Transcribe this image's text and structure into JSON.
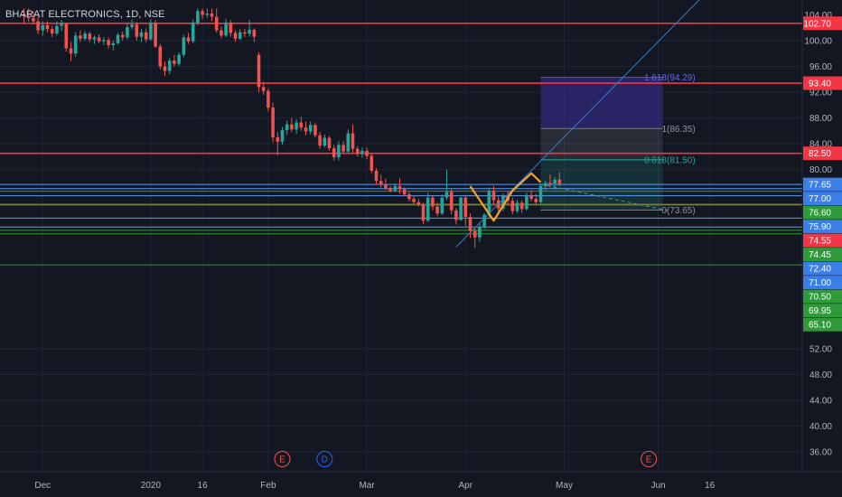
{
  "header": {
    "title": "BHARAT ELECTRONICS, 1D, NSE"
  },
  "colors": {
    "background": "#131722",
    "grid": "#1f2433",
    "up": "#26a69a",
    "down": "#ef5350",
    "axis_text": "#b2b5be",
    "pattern": "#f7a325",
    "trend": "#2f7fd6"
  },
  "chart_data": {
    "type": "candlestick",
    "title": "BHARAT ELECTRONICS, 1D, NSE",
    "ylim": [
      33.5,
      104.5
    ],
    "y_ticks": [
      100,
      96,
      92,
      88,
      84,
      80,
      52,
      48,
      44,
      40,
      36
    ],
    "top_partial_tick": "104.00",
    "x_tick_labels": [
      {
        "label": "Dec",
        "bar": 4
      },
      {
        "label": "2020",
        "bar": 27
      },
      {
        "label": "16",
        "bar": 38
      },
      {
        "label": "Feb",
        "bar": 52
      },
      {
        "label": "Mar",
        "bar": 73
      },
      {
        "label": "Apr",
        "bar": 94
      },
      {
        "label": "May",
        "bar": 115
      },
      {
        "label": "Jun",
        "bar": 135
      },
      {
        "label": "16",
        "bar": 146
      }
    ],
    "candles": [
      {
        "o": 104,
        "h": 105,
        "l": 102.8,
        "c": 103.8
      },
      {
        "o": 103.8,
        "h": 105,
        "l": 103,
        "c": 103.5
      },
      {
        "o": 103.5,
        "h": 104.6,
        "l": 102.5,
        "c": 103
      },
      {
        "o": 103,
        "h": 103.8,
        "l": 101,
        "c": 101.6
      },
      {
        "o": 101.6,
        "h": 103,
        "l": 100.8,
        "c": 102.4
      },
      {
        "o": 102.4,
        "h": 103,
        "l": 101.3,
        "c": 101.8
      },
      {
        "o": 101.8,
        "h": 102.3,
        "l": 100.5,
        "c": 101.1
      },
      {
        "o": 101.1,
        "h": 103,
        "l": 100.8,
        "c": 102.3
      },
      {
        "o": 102.3,
        "h": 103.2,
        "l": 101.5,
        "c": 102.6
      },
      {
        "o": 102.6,
        "h": 102.8,
        "l": 98.3,
        "c": 98.8
      },
      {
        "o": 98.8,
        "h": 99.8,
        "l": 96.8,
        "c": 98
      },
      {
        "o": 98,
        "h": 101.3,
        "l": 97.5,
        "c": 100.8
      },
      {
        "o": 100.8,
        "h": 101.6,
        "l": 99.8,
        "c": 100.3
      },
      {
        "o": 100.3,
        "h": 101.5,
        "l": 100,
        "c": 101.1
      },
      {
        "o": 101.1,
        "h": 101.4,
        "l": 99.8,
        "c": 100.2
      },
      {
        "o": 100.2,
        "h": 100.8,
        "l": 99.5,
        "c": 100.5
      },
      {
        "o": 100.5,
        "h": 101,
        "l": 99.6,
        "c": 99.9
      },
      {
        "o": 99.9,
        "h": 100.6,
        "l": 99.3,
        "c": 100.1
      },
      {
        "o": 100.1,
        "h": 100.5,
        "l": 98.8,
        "c": 99.3
      },
      {
        "o": 99.3,
        "h": 100,
        "l": 98.5,
        "c": 99.6
      },
      {
        "o": 99.6,
        "h": 101.2,
        "l": 99.4,
        "c": 100.9
      },
      {
        "o": 100.9,
        "h": 101.4,
        "l": 100,
        "c": 100.5
      },
      {
        "o": 100.5,
        "h": 102.6,
        "l": 100.2,
        "c": 102.1
      },
      {
        "o": 102.1,
        "h": 103.3,
        "l": 101.7,
        "c": 102.5
      },
      {
        "o": 102.5,
        "h": 102.9,
        "l": 100,
        "c": 100.6
      },
      {
        "o": 100.6,
        "h": 101.8,
        "l": 99.8,
        "c": 101.3
      },
      {
        "o": 101.3,
        "h": 101.9,
        "l": 99.8,
        "c": 100.2
      },
      {
        "o": 100.2,
        "h": 103.3,
        "l": 100,
        "c": 102.8
      },
      {
        "o": 102.8,
        "h": 103.2,
        "l": 98.9,
        "c": 99.1
      },
      {
        "o": 99.1,
        "h": 99.5,
        "l": 95.5,
        "c": 96
      },
      {
        "o": 96,
        "h": 96.8,
        "l": 94.5,
        "c": 95.3
      },
      {
        "o": 95.3,
        "h": 97.3,
        "l": 94.8,
        "c": 96.9
      },
      {
        "o": 96.9,
        "h": 97.8,
        "l": 96,
        "c": 96.4
      },
      {
        "o": 96.4,
        "h": 98.2,
        "l": 96.1,
        "c": 97.8
      },
      {
        "o": 97.8,
        "h": 100.9,
        "l": 97.4,
        "c": 100.5
      },
      {
        "o": 100.5,
        "h": 101.2,
        "l": 99.5,
        "c": 99.9
      },
      {
        "o": 99.9,
        "h": 103.3,
        "l": 99.6,
        "c": 102.8
      },
      {
        "o": 102.8,
        "h": 105,
        "l": 102.4,
        "c": 104.6
      },
      {
        "o": 104.6,
        "h": 105,
        "l": 103.4,
        "c": 104
      },
      {
        "o": 104,
        "h": 105,
        "l": 103.6,
        "c": 104.2
      },
      {
        "o": 104.2,
        "h": 105,
        "l": 103,
        "c": 103.7
      },
      {
        "o": 103.7,
        "h": 105,
        "l": 101.2,
        "c": 101.6
      },
      {
        "o": 101.6,
        "h": 102.2,
        "l": 100.4,
        "c": 100.8
      },
      {
        "o": 100.8,
        "h": 103.4,
        "l": 100.5,
        "c": 102.8
      },
      {
        "o": 102.8,
        "h": 103.2,
        "l": 100.6,
        "c": 101.2
      },
      {
        "o": 101.2,
        "h": 101.6,
        "l": 99.8,
        "c": 100.3
      },
      {
        "o": 100.3,
        "h": 101.8,
        "l": 100.1,
        "c": 101.3
      },
      {
        "o": 101.3,
        "h": 101.8,
        "l": 100.6,
        "c": 101.1
      },
      {
        "o": 101.1,
        "h": 103.2,
        "l": 100.6,
        "c": 101.7
      },
      {
        "o": 101.7,
        "h": 101.9,
        "l": 99.8,
        "c": 100.6
      },
      {
        "o": 97.8,
        "h": 98.2,
        "l": 92,
        "c": 92.8
      },
      {
        "o": 92.8,
        "h": 93.6,
        "l": 91.6,
        "c": 92.2
      },
      {
        "o": 92.2,
        "h": 92.6,
        "l": 89,
        "c": 89.6
      },
      {
        "o": 89.6,
        "h": 90.4,
        "l": 84.2,
        "c": 85
      },
      {
        "o": 85,
        "h": 85.8,
        "l": 82.2,
        "c": 84.3
      },
      {
        "o": 84.3,
        "h": 86.6,
        "l": 83.8,
        "c": 86.1
      },
      {
        "o": 86.1,
        "h": 87.6,
        "l": 85.4,
        "c": 87
      },
      {
        "o": 87,
        "h": 88,
        "l": 85.8,
        "c": 86.2
      },
      {
        "o": 86.2,
        "h": 87.8,
        "l": 85.5,
        "c": 87.3
      },
      {
        "o": 87.3,
        "h": 88.2,
        "l": 86,
        "c": 86.5
      },
      {
        "o": 86.5,
        "h": 87.4,
        "l": 85.3,
        "c": 85.9
      },
      {
        "o": 85.9,
        "h": 87.5,
        "l": 85.4,
        "c": 86.9
      },
      {
        "o": 86.9,
        "h": 87.2,
        "l": 85,
        "c": 85.3
      },
      {
        "o": 85.3,
        "h": 85.8,
        "l": 83.2,
        "c": 83.7
      },
      {
        "o": 83.7,
        "h": 85.4,
        "l": 83.4,
        "c": 84.9
      },
      {
        "o": 84.9,
        "h": 85.2,
        "l": 82.9,
        "c": 83.3
      },
      {
        "o": 83.3,
        "h": 83.8,
        "l": 81.3,
        "c": 81.9
      },
      {
        "o": 81.9,
        "h": 84.4,
        "l": 81.4,
        "c": 83.8
      },
      {
        "o": 83.8,
        "h": 84.4,
        "l": 82.4,
        "c": 82.8
      },
      {
        "o": 82.8,
        "h": 86.2,
        "l": 82.5,
        "c": 85.6
      },
      {
        "o": 85.6,
        "h": 87,
        "l": 82.6,
        "c": 83.2
      },
      {
        "o": 83.2,
        "h": 83.6,
        "l": 82,
        "c": 82.4
      },
      {
        "o": 82.4,
        "h": 83.4,
        "l": 81.8,
        "c": 82.9
      },
      {
        "o": 82.9,
        "h": 83.4,
        "l": 81.6,
        "c": 82.1
      },
      {
        "o": 82.1,
        "h": 82.5,
        "l": 79.4,
        "c": 79.8
      },
      {
        "o": 79.8,
        "h": 80.2,
        "l": 77.6,
        "c": 78.2
      },
      {
        "o": 78.2,
        "h": 79.2,
        "l": 77.2,
        "c": 77.6
      },
      {
        "o": 77.6,
        "h": 78.6,
        "l": 76.8,
        "c": 77.1
      },
      {
        "o": 77.1,
        "h": 77.4,
        "l": 76.4,
        "c": 76.7
      },
      {
        "o": 76.7,
        "h": 77.8,
        "l": 76.5,
        "c": 77.4
      },
      {
        "o": 77.4,
        "h": 78.6,
        "l": 76.2,
        "c": 76.9
      },
      {
        "o": 76.9,
        "h": 77.2,
        "l": 75.8,
        "c": 76.1
      },
      {
        "o": 76.1,
        "h": 76.5,
        "l": 75,
        "c": 75.4
      },
      {
        "o": 75.4,
        "h": 75.8,
        "l": 74.6,
        "c": 74.9
      },
      {
        "o": 74.9,
        "h": 75.4,
        "l": 74.2,
        "c": 74.5
      },
      {
        "o": 74.5,
        "h": 74.8,
        "l": 71.5,
        "c": 72
      },
      {
        "o": 72,
        "h": 76.4,
        "l": 71.8,
        "c": 75.6
      },
      {
        "o": 75.6,
        "h": 76,
        "l": 73.6,
        "c": 74.2
      },
      {
        "o": 74.2,
        "h": 74.8,
        "l": 72.7,
        "c": 73.1
      },
      {
        "o": 73.1,
        "h": 76.1,
        "l": 72.9,
        "c": 75.6
      },
      {
        "o": 75.6,
        "h": 80,
        "l": 75.2,
        "c": 76.5
      },
      {
        "o": 76.5,
        "h": 77,
        "l": 73,
        "c": 73.6
      },
      {
        "o": 73.6,
        "h": 74,
        "l": 71.4,
        "c": 72.1
      },
      {
        "o": 72.1,
        "h": 75.7,
        "l": 72,
        "c": 75.6
      },
      {
        "o": 75.6,
        "h": 76,
        "l": 71.2,
        "c": 72.6
      },
      {
        "o": 72.6,
        "h": 73.1,
        "l": 69.3,
        "c": 70.4
      },
      {
        "o": 70.4,
        "h": 71,
        "l": 67.8,
        "c": 69.4
      },
      {
        "o": 69.4,
        "h": 71.6,
        "l": 68.7,
        "c": 71
      },
      {
        "o": 71,
        "h": 73.2,
        "l": 70.7,
        "c": 72.9
      },
      {
        "o": 72.9,
        "h": 77.2,
        "l": 72.5,
        "c": 76.6
      },
      {
        "o": 76.6,
        "h": 77.4,
        "l": 74.5,
        "c": 75.2
      },
      {
        "o": 75.2,
        "h": 75.8,
        "l": 73.3,
        "c": 73.9
      },
      {
        "o": 73.9,
        "h": 76.2,
        "l": 73.5,
        "c": 75.9
      },
      {
        "o": 75.9,
        "h": 76.6,
        "l": 74.5,
        "c": 75.1
      },
      {
        "o": 75.1,
        "h": 75.6,
        "l": 73,
        "c": 73.5
      },
      {
        "o": 73.5,
        "h": 75.3,
        "l": 73.2,
        "c": 74.8
      },
      {
        "o": 74.8,
        "h": 75.2,
        "l": 73.2,
        "c": 73.8
      },
      {
        "o": 73.8,
        "h": 76.4,
        "l": 73.6,
        "c": 76
      },
      {
        "o": 76,
        "h": 76.8,
        "l": 75,
        "c": 75.4
      },
      {
        "o": 75.4,
        "h": 76.2,
        "l": 74.5,
        "c": 74.9
      },
      {
        "o": 74.9,
        "h": 77.8,
        "l": 74.7,
        "c": 77.4
      },
      {
        "o": 77.4,
        "h": 78.2,
        "l": 76.7,
        "c": 77.9
      },
      {
        "o": 77.9,
        "h": 79.2,
        "l": 77.2,
        "c": 77.8
      },
      {
        "o": 77.8,
        "h": 78.8,
        "l": 76.8,
        "c": 78.4
      },
      {
        "o": 78.4,
        "h": 79.6,
        "l": 77.4,
        "c": 77.7
      }
    ],
    "horizontal_levels": [
      {
        "value": 102.7,
        "label": "102.70",
        "line_color": "#f23645",
        "tag_color": "#f23645",
        "tag_text": "#ffffff",
        "width": 1.6
      },
      {
        "value": 93.4,
        "label": "93.40",
        "line_color": "#f23645",
        "tag_color": "#f23645",
        "tag_text": "#ffffff",
        "width": 1.6
      },
      {
        "value": 82.5,
        "label": "82.50",
        "line_color": "#f23645",
        "tag_color": "#f23645",
        "tag_text": "#ffffff",
        "width": 1.6
      },
      {
        "value": 77.65,
        "label": "77.65",
        "line_color": "#5b9cf6",
        "tag_color": "#3c7ee8",
        "tag_text": "#ffffff",
        "width": 1
      },
      {
        "value": 77.0,
        "label": "77.00",
        "line_color": "#5b9cf6",
        "tag_color": "#3c7ee8",
        "tag_text": "#ffffff",
        "width": 1
      },
      {
        "value": 76.6,
        "label": "76.60",
        "line_color": "#2e9a3a",
        "tag_color": "#2e9a3a",
        "tag_text": "#ffffff",
        "width": 1
      },
      {
        "value": 75.9,
        "label": "75.90",
        "line_color": "#5b9cf6",
        "tag_color": "#3c7ee8",
        "tag_text": "#ffffff",
        "width": 1
      },
      {
        "value": 74.55,
        "label": "74.55",
        "line_color": "#ef5350",
        "tag_color": "#f23645",
        "tag_text": "#ffffff",
        "width": 1
      },
      {
        "value": 74.45,
        "label": "74.45",
        "line_color": "#2e9a3a",
        "tag_color": "#2e9a3a",
        "tag_text": "#ffffff",
        "width": 1
      },
      {
        "value": 72.4,
        "label": "72.40",
        "line_color": "#5b9cf6",
        "tag_color": "#3c7ee8",
        "tag_text": "#ffffff",
        "width": 1
      },
      {
        "value": 71.0,
        "label": "71.00",
        "line_color": "#5b9cf6",
        "tag_color": "#3c7ee8",
        "tag_text": "#ffffff",
        "width": 1
      },
      {
        "value": 70.5,
        "label": "70.50",
        "line_color": "#2e9a3a",
        "tag_color": "#2e9a3a",
        "tag_text": "#ffffff",
        "width": 1
      },
      {
        "value": 69.95,
        "label": "69.95",
        "line_color": "#2e9a3a",
        "tag_color": "#2e9a3a",
        "tag_text": "#ffffff",
        "width": 1
      },
      {
        "value": 65.1,
        "label": "65.10",
        "line_color": "#2e9a3a",
        "tag_color": "#2e9a3a",
        "tag_text": "#ffffff",
        "width": 1
      }
    ],
    "fibonacci": {
      "start_bar": 110,
      "end_bar": 136,
      "levels": [
        {
          "ratio": "1.618",
          "value": "94.29",
          "label": "1.618(94.29)",
          "top": 94.29,
          "bottom": 86.35,
          "fill": "rgba(66,52,180,0.45)",
          "line": "#5f55d9",
          "text": "#6b63e6"
        },
        {
          "ratio": "1",
          "value": "86.35",
          "label": "1(86.35)",
          "top": 86.35,
          "bottom": 81.5,
          "fill": "rgba(120,123,134,0.22)",
          "line": "#787b86",
          "text": "#8f929c"
        },
        {
          "ratio": "0.618",
          "value": "81.50",
          "label": "0.618(81.50)",
          "top": 81.5,
          "bottom": 73.65,
          "fill": "rgba(38,166,154,0.18)",
          "line": "#26a69a",
          "text": "#26a69a"
        },
        {
          "ratio": "0",
          "value": "73.65",
          "label": "0(73.65)",
          "top": 73.65,
          "bottom": 73.65,
          "fill": "rgba(0,0,0,0)",
          "line": "#787b86",
          "text": "#8f929c"
        }
      ]
    },
    "harmonic_pattern": [
      {
        "bar": 95,
        "y": 77.4
      },
      {
        "bar": 100,
        "y": 72.0
      },
      {
        "bar": 104,
        "y": 76.7
      },
      {
        "bar": 108,
        "y": 79.4
      },
      {
        "bar": 110,
        "y": 78.0
      }
    ],
    "trendline": [
      {
        "bar": 92,
        "y": 67.9
      },
      {
        "bar": 146,
        "y": 108
      }
    ],
    "projection_line": [
      {
        "bar": 110,
        "y": 77.7
      },
      {
        "bar": 137,
        "y": 73.6
      }
    ],
    "event_markers": [
      {
        "label": "E",
        "bar": 55,
        "color": "#ef5350"
      },
      {
        "label": "D",
        "bar": 64,
        "color": "#2962ff"
      },
      {
        "label": "E",
        "bar": 133,
        "color": "#ef5350"
      }
    ]
  }
}
